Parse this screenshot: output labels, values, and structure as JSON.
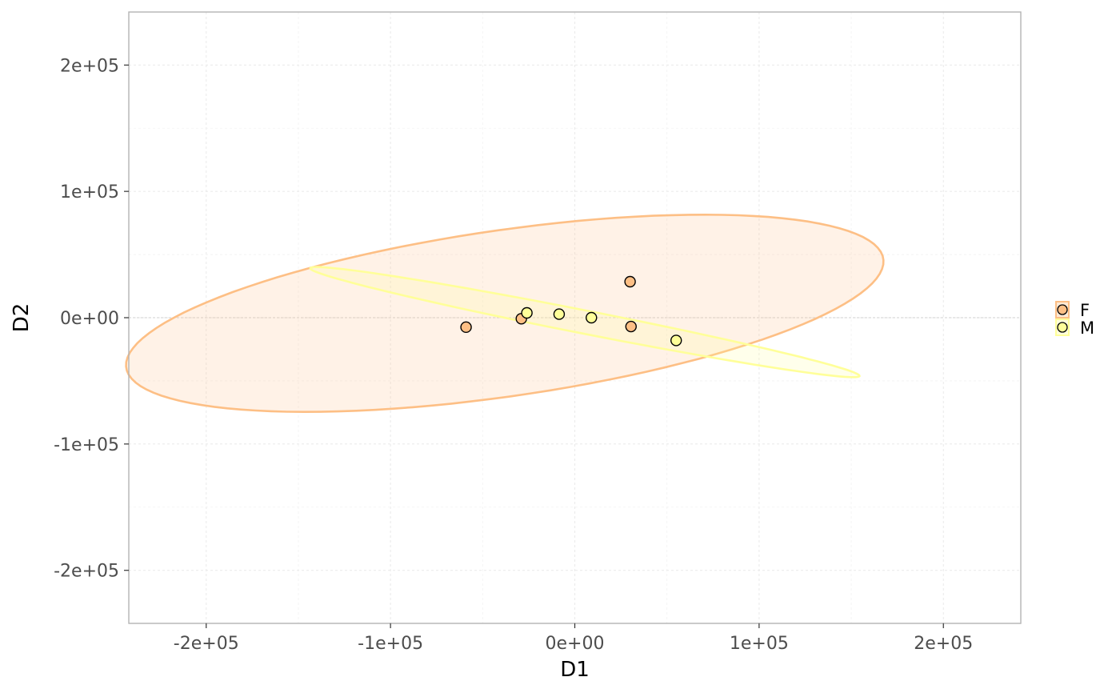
{
  "chart_data": {
    "type": "scatter",
    "title": "",
    "xlabel": "D1",
    "ylabel": "D2",
    "xlim": [
      -242000,
      242000
    ],
    "ylim": [
      -242000,
      242000
    ],
    "x_ticks": [
      -200000,
      -100000,
      0,
      100000,
      200000
    ],
    "x_tick_labels": [
      "-2e+05",
      "-1e+05",
      "0e+00",
      "1e+05",
      "2e+05"
    ],
    "y_ticks": [
      -200000,
      -100000,
      0,
      100000,
      200000
    ],
    "y_tick_labels": [
      "-2e+05",
      "-1e+05",
      "0e+00",
      "1e+05",
      "2e+05"
    ],
    "grid": true,
    "legend_position": "right",
    "series": [
      {
        "name": "F",
        "color": "#fdbf85",
        "points": [
          {
            "x": -59000,
            "y": -7500
          },
          {
            "x": -29000,
            "y": -800
          },
          {
            "x": 30000,
            "y": 28500
          },
          {
            "x": 30500,
            "y": -7000
          }
        ],
        "ellipse": {
          "cx": -38000,
          "cy": 3500,
          "rx": 210000,
          "ry": 65000,
          "angle_deg": 12.5
        }
      },
      {
        "name": "M",
        "color": "#ffff99",
        "points": [
          {
            "x": -26000,
            "y": 3800
          },
          {
            "x": -8500,
            "y": 2800
          },
          {
            "x": 9000,
            "y": 0
          },
          {
            "x": 55000,
            "y": -18000
          }
        ],
        "ellipse": {
          "cx": 5500,
          "cy": -3500,
          "rx": 155000,
          "ry": 9000,
          "angle_deg": -16
        }
      }
    ],
    "legend": {
      "entries": [
        {
          "label": "F",
          "color": "#fdbf85"
        },
        {
          "label": "M",
          "color": "#ffff99"
        }
      ]
    }
  }
}
